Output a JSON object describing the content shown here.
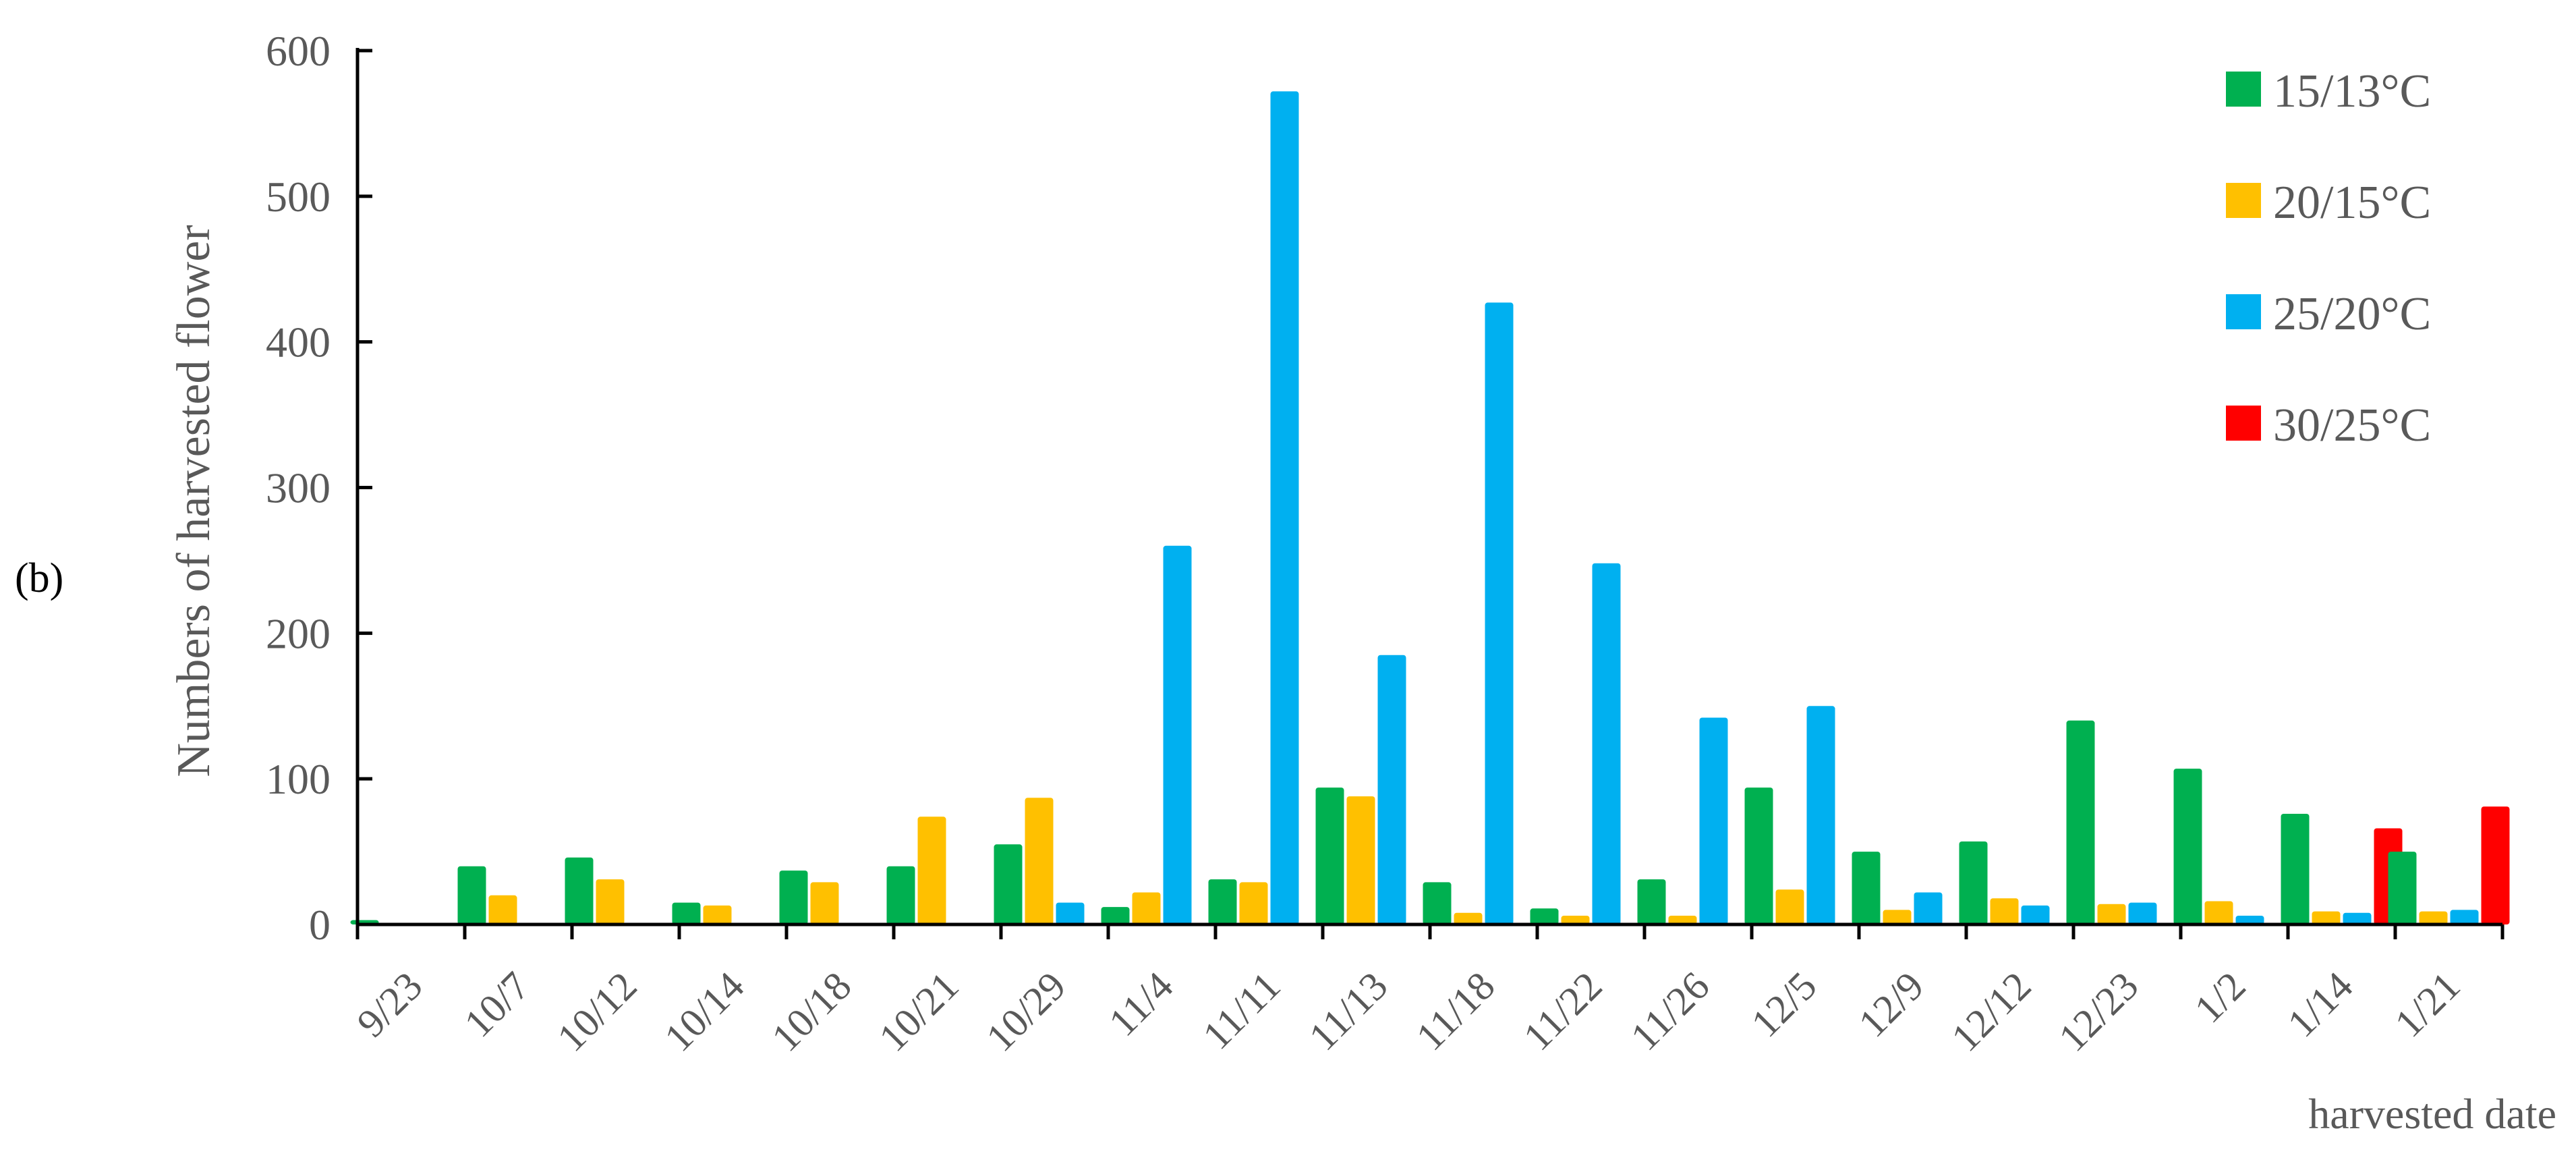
{
  "panel_label": "(b)",
  "colors": {
    "series": [
      "#00b050",
      "#ffc000",
      "#00b0f0",
      "#ff0000"
    ],
    "axis": "#000000",
    "text": "#595959"
  },
  "chart_data": {
    "type": "bar",
    "xlabel": "harvested date",
    "ylabel": "Numbers of harvested flower",
    "ylim": [
      0,
      600
    ],
    "yticks": [
      0,
      100,
      200,
      300,
      400,
      500,
      600
    ],
    "grid": false,
    "legend_position": "top-right",
    "categories": [
      "9/23",
      "10/7",
      "10/12",
      "10/14",
      "10/18",
      "10/21",
      "10/29",
      "11/4",
      "11/11",
      "11/13",
      "11/18",
      "11/22",
      "11/26",
      "12/5",
      "12/9",
      "12/12",
      "12/23",
      "1/2",
      "1/14",
      "1/21"
    ],
    "series": [
      {
        "name": "15/13°C",
        "values": [
          3,
          40,
          46,
          15,
          37,
          40,
          55,
          12,
          31,
          94,
          29,
          11,
          31,
          94,
          50,
          57,
          140,
          107,
          76,
          50
        ]
      },
      {
        "name": "20/15°C",
        "values": [
          0,
          20,
          31,
          13,
          29,
          74,
          87,
          22,
          29,
          88,
          8,
          6,
          6,
          24,
          10,
          18,
          14,
          16,
          9,
          9
        ]
      },
      {
        "name": "25/20°C",
        "values": [
          0,
          0,
          0,
          0,
          0,
          0,
          15,
          260,
          572,
          185,
          427,
          248,
          142,
          150,
          22,
          13,
          15,
          6,
          8,
          10
        ]
      },
      {
        "name": "30/25°C",
        "values": [
          0,
          0,
          0,
          0,
          0,
          0,
          0,
          0,
          0,
          0,
          0,
          0,
          0,
          0,
          0,
          0,
          0,
          0,
          66,
          81
        ]
      }
    ]
  }
}
